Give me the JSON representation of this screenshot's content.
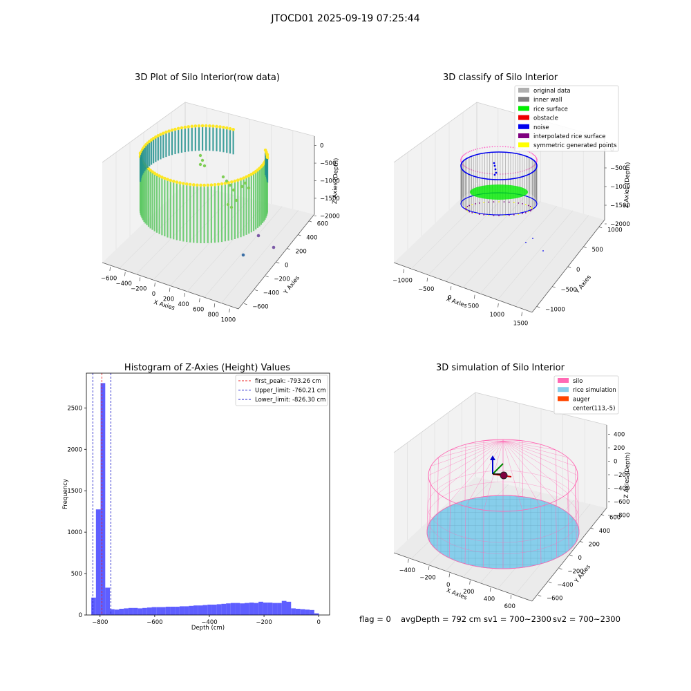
{
  "suptitle": "JTOCD01 2025-09-19 07:25:44",
  "footer": {
    "flag": "flag = 0",
    "avg_depth": "avgDepth = 792 cm",
    "sv1": "sv1 = 700~2300",
    "sv2": "sv2 = 700~2300"
  },
  "chart_data": [
    {
      "type": "scatter",
      "projection": "3d",
      "title": "3D Plot of Silo Interior(row data)",
      "xlabel": "X Axies",
      "ylabel": "Y Axies",
      "zlabel": "Z Axies (Depth)",
      "xticks": [
        "−600",
        "−400",
        "−200",
        "0",
        "200",
        "400",
        "600",
        "800",
        "1000"
      ],
      "yticks": [
        "−600",
        "−400",
        "−200",
        "0",
        "200",
        "400",
        "600"
      ],
      "zticks": [
        "0",
        "−500",
        "−1000",
        "−1500",
        "−2000"
      ],
      "colormap": [
        "#440154",
        "#3b528b",
        "#21908d",
        "#5dc863",
        "#fde725"
      ]
    },
    {
      "type": "scatter",
      "projection": "3d",
      "title": "3D classify of Silo Interior",
      "xlabel": "X Axies",
      "ylabel": "Y Axies",
      "zlabel": "Z Axies (Depth)",
      "xticks": [
        "−1000",
        "−500",
        "0",
        "500",
        "1000",
        "1500"
      ],
      "yticks": [
        "−1000",
        "−500",
        "0",
        "500",
        "1000"
      ],
      "zticks": [
        "0",
        "−500",
        "−1000",
        "−1500",
        "−2000"
      ],
      "legend_position": "top-right",
      "legend": [
        {
          "label": "original data",
          "color": "#b0b0b0"
        },
        {
          "label": "inner wall",
          "color": "#808080"
        },
        {
          "label": "rice surface",
          "color": "#00ee00"
        },
        {
          "label": "obstacle",
          "color": "#ee0000"
        },
        {
          "label": "noise",
          "color": "#0000ee"
        },
        {
          "label": "interpolated rice surface",
          "color": "#800080"
        },
        {
          "label": "symmetric generated points",
          "color": "#ffff00"
        }
      ]
    },
    {
      "type": "bar",
      "title": "Histogram of Z-Axies (Height) Values",
      "xlabel": "Depth (cm)",
      "ylabel": "Frequency",
      "xlim": [
        -850,
        40
      ],
      "ylim": [
        0,
        2920
      ],
      "xticks": [
        "−800",
        "−600",
        "−400",
        "−200",
        "0"
      ],
      "yticks": [
        "0",
        "500",
        "1000",
        "1500",
        "2000",
        "2500"
      ],
      "bar_color": "#5555ff",
      "bin_width": 17,
      "bins_start": [
        -832,
        -815,
        -798,
        -781,
        -764,
        -747,
        -730,
        -713,
        -696,
        -679,
        -662,
        -645,
        -628,
        -611,
        -594,
        -577,
        -560,
        -543,
        -526,
        -509,
        -492,
        -475,
        -458,
        -441,
        -424,
        -407,
        -390,
        -373,
        -356,
        -339,
        -322,
        -305,
        -288,
        -271,
        -254,
        -237,
        -220,
        -203,
        -186,
        -169,
        -152,
        -135,
        -118,
        -101,
        -84,
        -67,
        -50,
        -33,
        -16
      ],
      "values": [
        210,
        1275,
        2800,
        330,
        70,
        65,
        75,
        80,
        85,
        85,
        80,
        85,
        90,
        95,
        95,
        95,
        100,
        100,
        100,
        105,
        105,
        110,
        115,
        115,
        120,
        125,
        125,
        130,
        135,
        140,
        145,
        145,
        140,
        145,
        150,
        145,
        160,
        150,
        150,
        145,
        145,
        170,
        160,
        80,
        75,
        70,
        65,
        60,
        20
      ],
      "vlines": [
        {
          "label": "first_peak: -793.26 cm",
          "x": -793.26,
          "color": "#ee2222",
          "style": "dashed"
        },
        {
          "label": "Upper_limit: -760.21 cm",
          "x": -760.21,
          "color": "#2222cc",
          "style": "dashed"
        },
        {
          "label": "Lower_limit: -826.30 cm",
          "x": -826.3,
          "color": "#2222cc",
          "style": "dashed"
        }
      ],
      "legend_position": "top-right"
    },
    {
      "type": "scatter",
      "projection": "3d",
      "title": "3D simulation of Silo Interior",
      "xlabel": "X Axies",
      "ylabel": "Y Axies",
      "zlabel": "Z Axies (Depth)",
      "xticks": [
        "−400",
        "−200",
        "0",
        "200",
        "400",
        "600"
      ],
      "yticks": [
        "−600",
        "−400",
        "−200",
        "0",
        "200",
        "400",
        "600"
      ],
      "zticks": [
        "400",
        "200",
        "0",
        "−200",
        "−400",
        "−600",
        "−800"
      ],
      "legend_position": "top-right",
      "legend": [
        {
          "label": "silo",
          "color": "#ff69b4"
        },
        {
          "label": "rice simulation",
          "color": "#87ceeb"
        },
        {
          "label": "auger",
          "color": "#ff4500"
        },
        {
          "label": "center(113,-5)",
          "color": "#ffffff"
        }
      ]
    }
  ]
}
